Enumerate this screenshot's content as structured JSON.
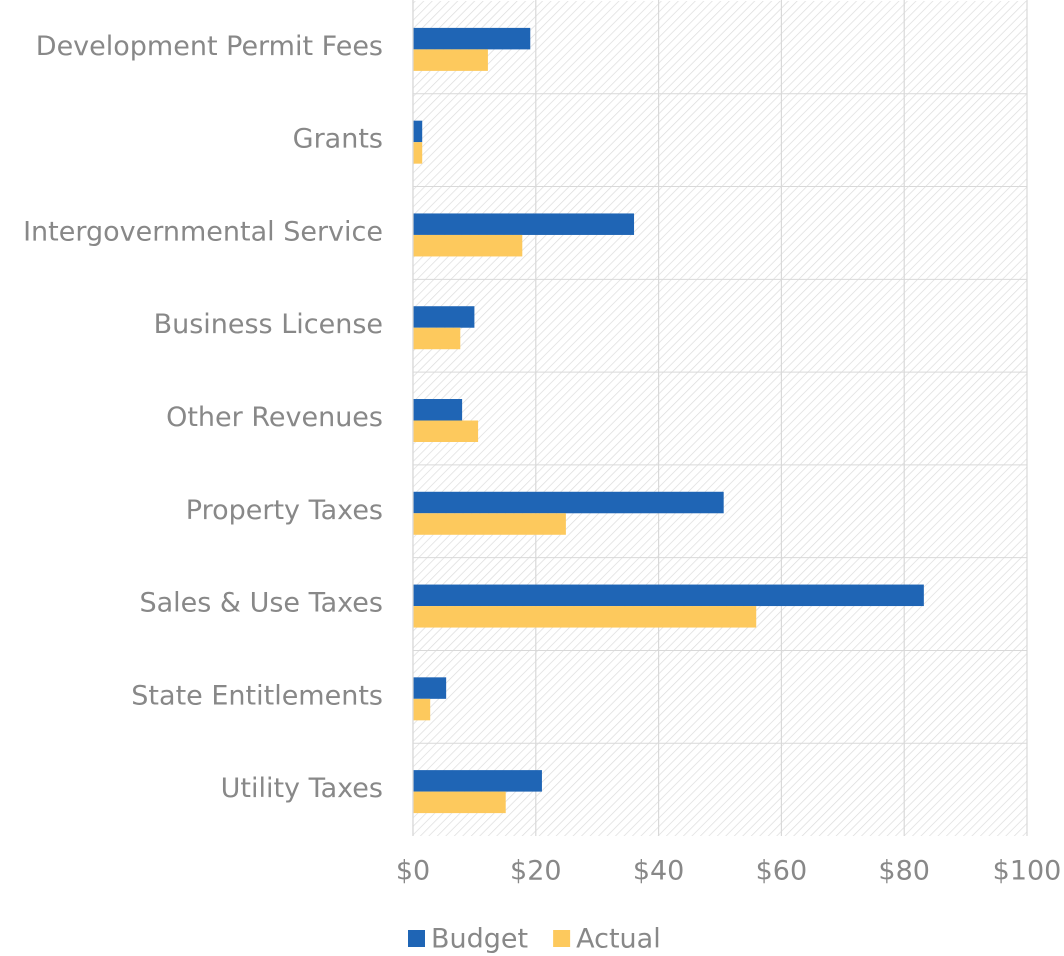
{
  "chart_data": {
    "type": "bar",
    "orientation": "horizontal",
    "categories": [
      "Development Permit Fees",
      "Grants",
      "Intergovernmental Service",
      "Business License",
      "Other Revenues",
      "Property Taxes",
      "Sales & Use Taxes",
      "State Entitlements",
      "Utility Taxes"
    ],
    "series": [
      {
        "name": "Budget",
        "color": "#1f65b5",
        "values": [
          19.1,
          1.5,
          36,
          10,
          8,
          50.6,
          83.2,
          5.4,
          21
        ]
      },
      {
        "name": "Actual",
        "color": "#fdc95d",
        "values": [
          12.2,
          1.5,
          17.8,
          7.7,
          10.6,
          24.9,
          55.9,
          2.8,
          15.1
        ]
      }
    ],
    "xlim": [
      0,
      100
    ],
    "xticks": [
      {
        "value": 0,
        "label": "$0"
      },
      {
        "value": 20,
        "label": "$20"
      },
      {
        "value": 40,
        "label": "$40"
      },
      {
        "value": 60,
        "label": "$60"
      },
      {
        "value": 80,
        "label": "$80"
      },
      {
        "value": 100,
        "label": "$100"
      }
    ],
    "grid": true,
    "legend": "bottom"
  }
}
